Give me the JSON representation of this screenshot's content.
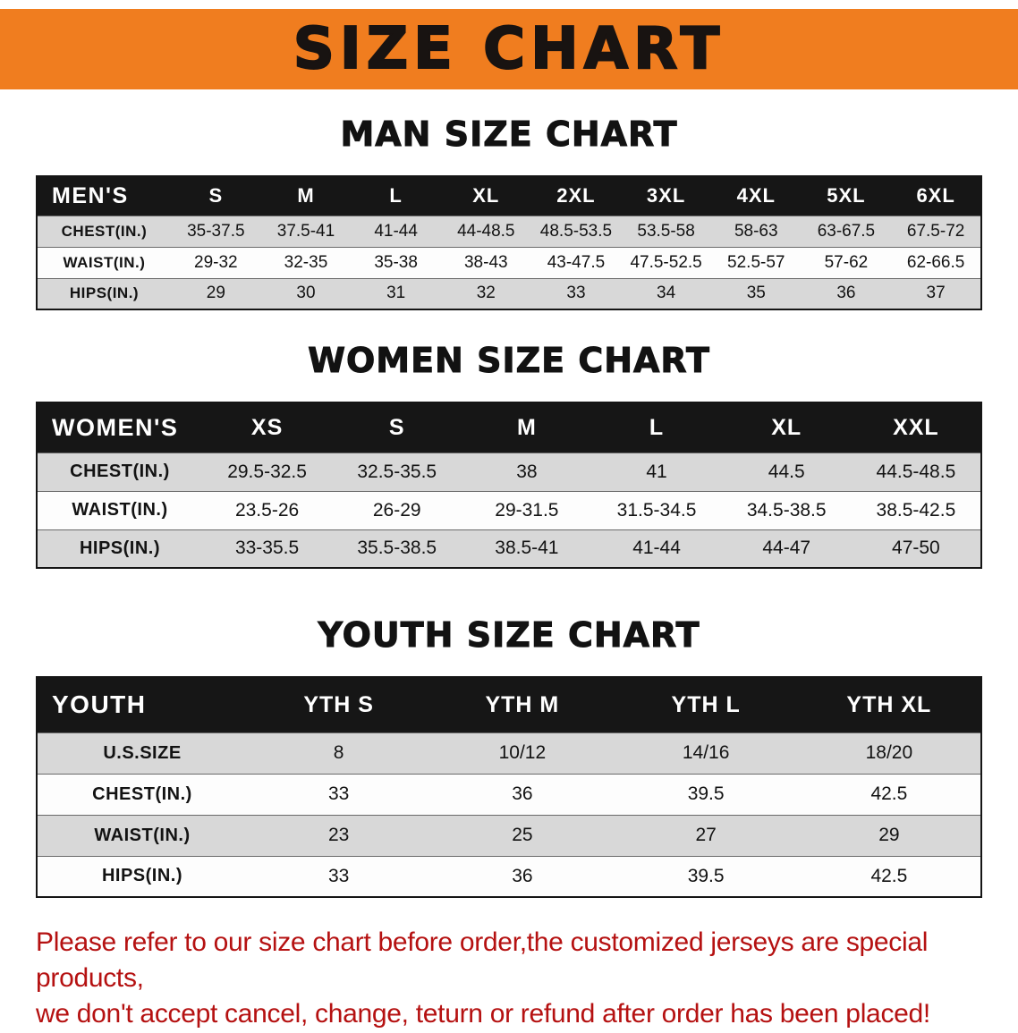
{
  "banner": {
    "title": "SIZE CHART"
  },
  "colors": {
    "banner_bg": "#f07d1f",
    "header_bg": "#161616",
    "row_alt": "#d8d8d8",
    "footer_red": "#b51111"
  },
  "sections": [
    {
      "id": "men",
      "title": "MAN SIZE CHART",
      "table": {
        "header": [
          "MEN'S",
          "S",
          "M",
          "L",
          "XL",
          "2XL",
          "3XL",
          "4XL",
          "5XL",
          "6XL"
        ],
        "rows": [
          {
            "label": "CHEST(IN.)",
            "values": [
              "35-37.5",
              "37.5-41",
              "41-44",
              "44-48.5",
              "48.5-53.5",
              "53.5-58",
              "58-63",
              "63-67.5",
              "67.5-72"
            ]
          },
          {
            "label": "WAIST(IN.)",
            "values": [
              "29-32",
              "32-35",
              "35-38",
              "38-43",
              "43-47.5",
              "47.5-52.5",
              "52.5-57",
              "57-62",
              "62-66.5"
            ]
          },
          {
            "label": "HIPS(IN.)",
            "values": [
              "29",
              "30",
              "31",
              "32",
              "33",
              "34",
              "35",
              "36",
              "37"
            ]
          }
        ]
      }
    },
    {
      "id": "women",
      "title": "WOMEN SIZE CHART",
      "table": {
        "header": [
          "WOMEN'S",
          "XS",
          "S",
          "M",
          "L",
          "XL",
          "XXL"
        ],
        "rows": [
          {
            "label": "CHEST(IN.)",
            "values": [
              "29.5-32.5",
              "32.5-35.5",
              "38",
              "41",
              "44.5",
              "44.5-48.5"
            ]
          },
          {
            "label": "WAIST(IN.)",
            "values": [
              "23.5-26",
              "26-29",
              "29-31.5",
              "31.5-34.5",
              "34.5-38.5",
              "38.5-42.5"
            ]
          },
          {
            "label": "HIPS(IN.)",
            "values": [
              "33-35.5",
              "35.5-38.5",
              "38.5-41",
              "41-44",
              "44-47",
              "47-50"
            ]
          }
        ]
      }
    },
    {
      "id": "youth",
      "title": "YOUTH SIZE CHART",
      "table": {
        "header": [
          "YOUTH",
          "YTH S",
          "YTH M",
          "YTH L",
          "YTH XL"
        ],
        "rows": [
          {
            "label": "U.S.SIZE",
            "values": [
              "8",
              "10/12",
              "14/16",
              "18/20"
            ]
          },
          {
            "label": "CHEST(IN.)",
            "values": [
              "33",
              "36",
              "39.5",
              "42.5"
            ]
          },
          {
            "label": "WAIST(IN.)",
            "values": [
              "23",
              "25",
              "27",
              "29"
            ]
          },
          {
            "label": "HIPS(IN.)",
            "values": [
              "33",
              "36",
              "39.5",
              "42.5"
            ]
          }
        ]
      }
    }
  ],
  "footer": {
    "lines": [
      "Please refer to our size chart before order,the customized jerseys are special products,",
      "we don't accept cancel, change, teturn or refund after order has been placed!"
    ]
  }
}
